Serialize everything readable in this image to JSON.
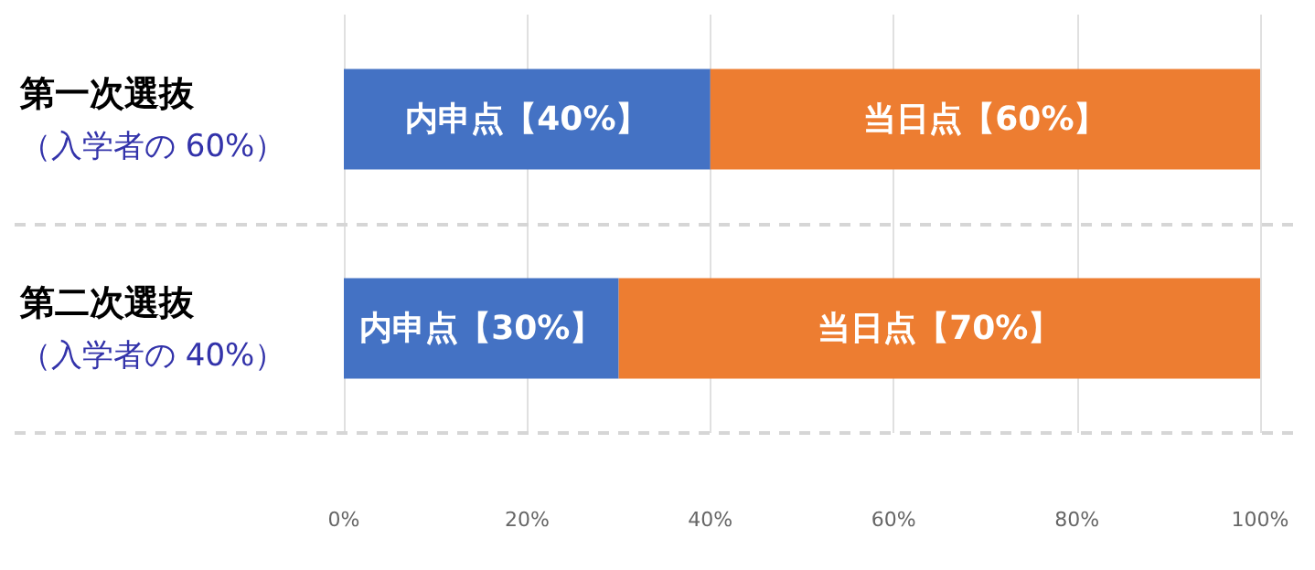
{
  "chart_data": {
    "type": "bar",
    "orientation": "horizontal",
    "stacked": true,
    "categories": [
      "第一次選抜（入学者の 60%）",
      "第二次選抜（入学者の 40%）"
    ],
    "series": [
      {
        "color": "#4472c4",
        "values": [
          40,
          30
        ],
        "value_labels": [
          "内申点【40%】",
          "内申点【30%】"
        ]
      },
      {
        "color": "#ed7d31",
        "values": [
          60,
          70
        ],
        "value_labels": [
          "当日点【60%】",
          "当日点【70%】"
        ]
      }
    ],
    "xlim": [
      0,
      100
    ],
    "xticks": [
      {
        "value": 0,
        "label": "0%"
      },
      {
        "value": 20,
        "label": "20%"
      },
      {
        "value": 40,
        "label": "40%"
      },
      {
        "value": 60,
        "label": "60%"
      },
      {
        "value": 80,
        "label": "80%"
      },
      {
        "value": 100,
        "label": "100%"
      }
    ],
    "grid": "x"
  }
}
